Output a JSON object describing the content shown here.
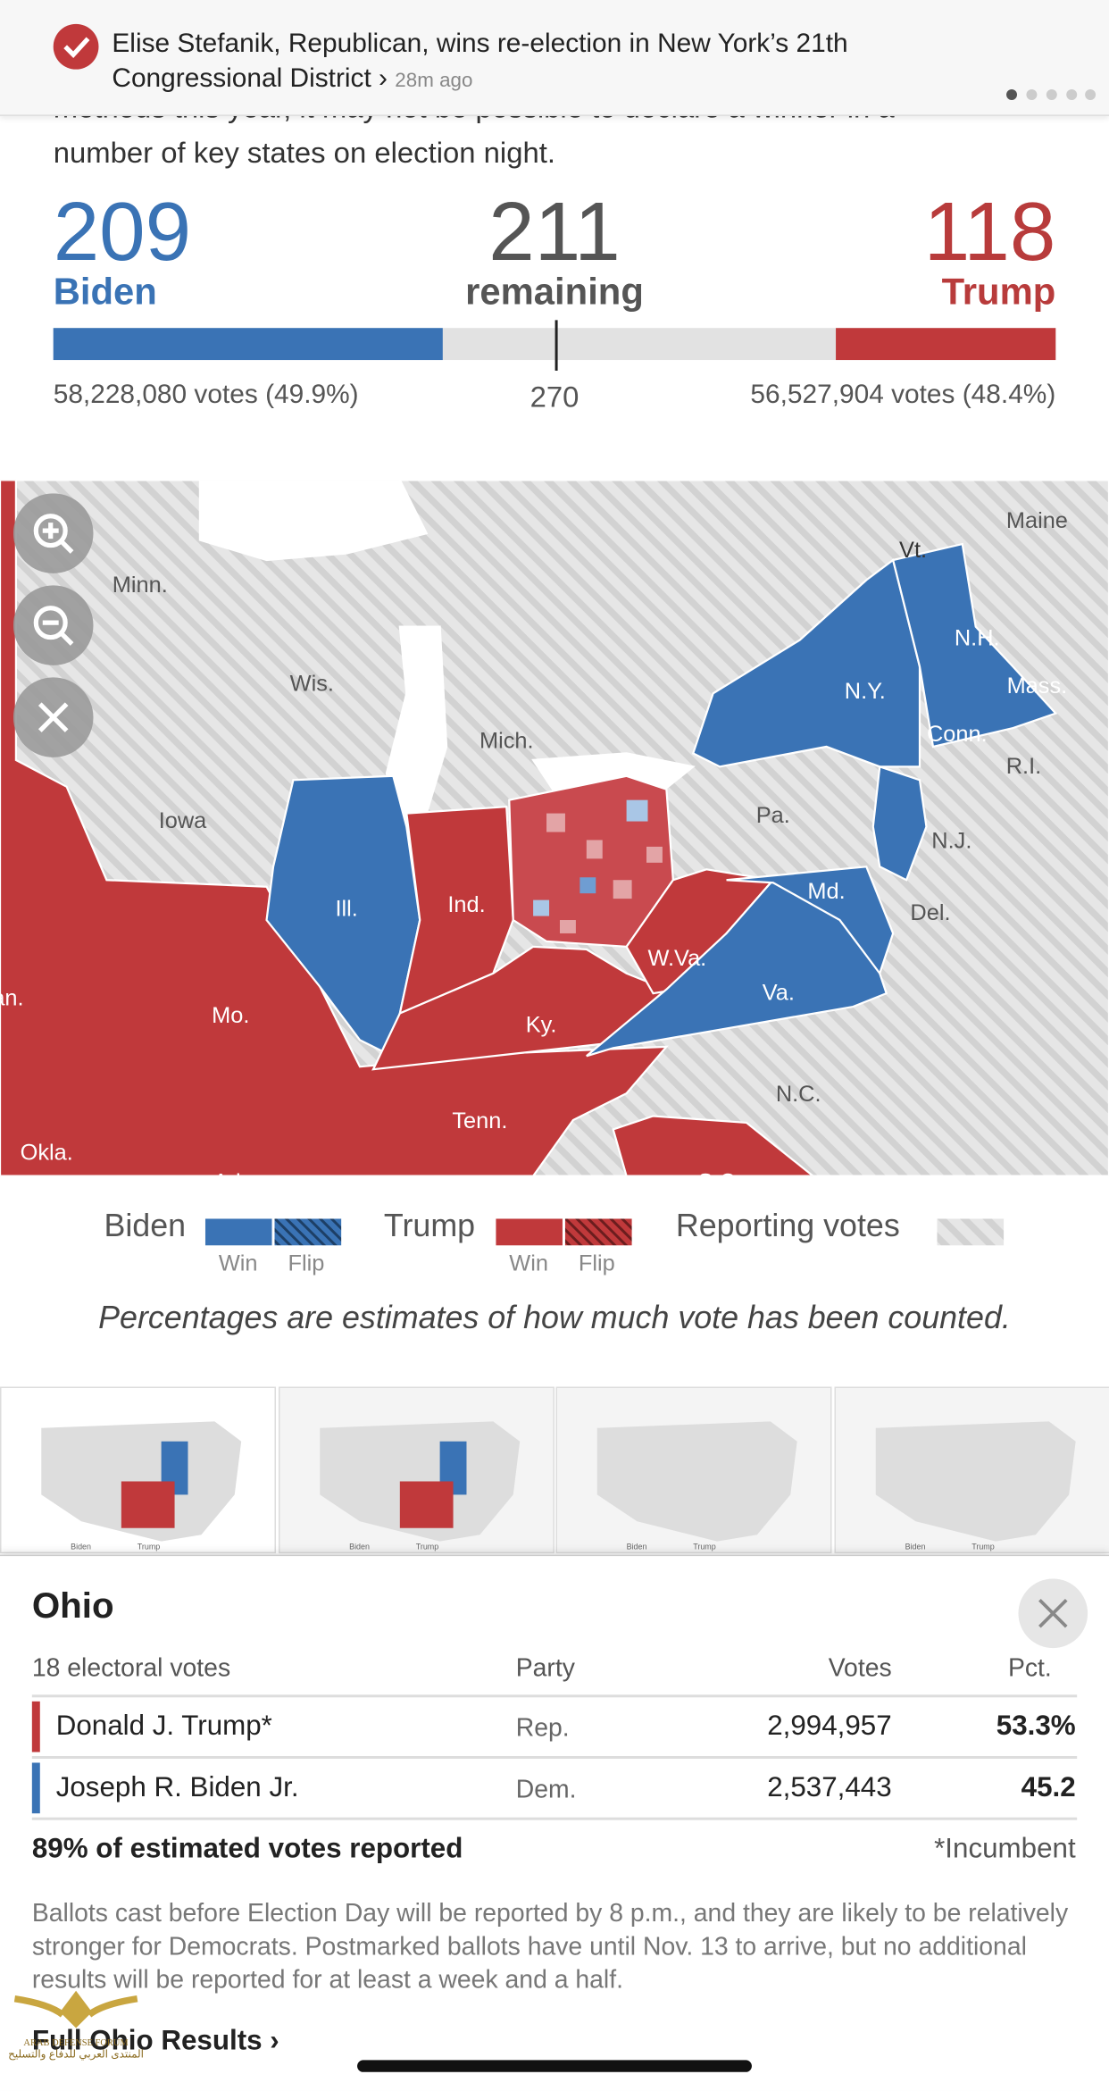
{
  "notification": {
    "text": "Elise Stefanik, Republican, wins re-election in New York’s 21th Congressional District ›",
    "time": "28m ago"
  },
  "intro": [
    "methods this year, it may not be possible to declare a winner in a",
    "number of key states on election night."
  ],
  "tally": {
    "biden": {
      "count": 209,
      "name": "Biden",
      "votes": "58,228,080 votes (49.9%)"
    },
    "remaining": {
      "count": 211,
      "label": "remaining"
    },
    "trump": {
      "count": 118,
      "name": "Trump",
      "votes": "56,527,904 votes (48.4%)"
    },
    "threshold": 270
  },
  "map_labels": [
    "Maine",
    "Vt.",
    "Minn.",
    "N.H.",
    "Wis.",
    "N.Y.",
    "Mass.",
    "Mich.",
    "Conn.",
    "R.I.",
    "Iowa",
    "Pa.",
    "N.J.",
    "Ill.",
    "Ind.",
    "Md.",
    "Del.",
    "an.",
    "W.Va.",
    "Mo.",
    "Va.",
    "Ky.",
    "N.C.",
    "Tenn.",
    "Okla.",
    "Ark.",
    "S.C."
  ],
  "legend": {
    "biden": "Biden",
    "trump": "Trump",
    "win": "Win",
    "flip": "Flip",
    "reporting": "Reporting votes"
  },
  "note": "Percentages are estimates of how much vote has been counted.",
  "thumbnails": [
    {
      "biden": "Biden",
      "trump": "Trump"
    },
    {
      "biden": "Biden",
      "trump": "Trump"
    },
    {
      "biden": "Biden",
      "trump": "Trump"
    },
    {
      "biden": "Biden",
      "trump": "Trump"
    }
  ],
  "ohio": {
    "title": "Ohio",
    "header": [
      "18 electoral votes",
      "Party",
      "Votes",
      "Pct."
    ],
    "rows": [
      {
        "name": "Donald J. Trump*",
        "party": "Rep.",
        "votes": "2,994,957",
        "pct": "53.3%"
      },
      {
        "name": "Joseph R. Biden Jr.",
        "party": "Dem.",
        "votes": "2,537,443",
        "pct": "45.2"
      }
    ],
    "reported": "89% of estimated votes reported",
    "incumbent": "*Incumbent",
    "explainer": "Ballots cast before Election Day will be reported by 8 p.m., and they are likely to be relatively stronger for Democrats. Postmarked ballots have until Nov. 13 to arrive, but no additional results will be reported for at least a week and a half.",
    "link": "Full Ohio Results ›"
  },
  "watermark": [
    "ARAB DEFENSE FORUM",
    "المنتدى العربي للدفاع والتسليح"
  ]
}
